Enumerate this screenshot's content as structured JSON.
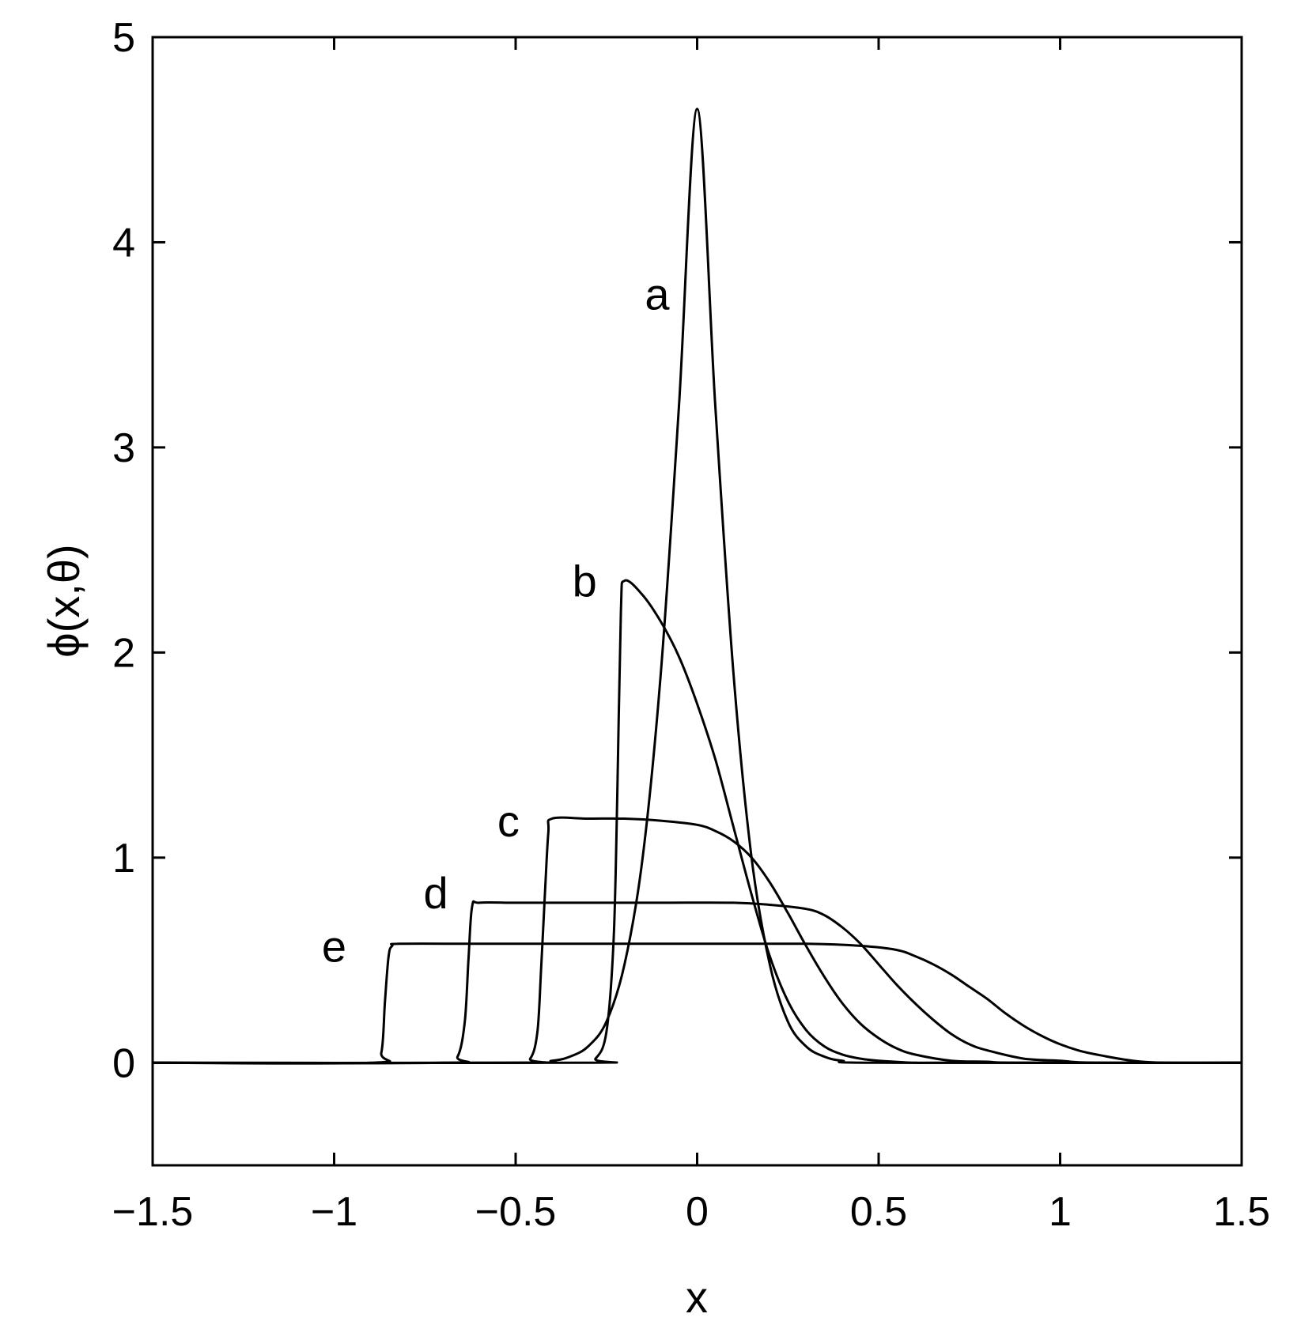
{
  "chart_data": {
    "type": "line",
    "title": "",
    "xlabel": "x",
    "ylabel": "ϕ(x,θ)",
    "xlim": [
      -1.5,
      1.5
    ],
    "ylim": [
      -0.5,
      5
    ],
    "grid": false,
    "line_color": "#000000",
    "x_ticks": [
      -1.5,
      -1,
      -0.5,
      0,
      0.5,
      1,
      1.5
    ],
    "x_tick_labels": [
      "−1.5",
      "−1",
      "−0.5",
      "0",
      "0.5",
      "1",
      "1.5"
    ],
    "y_ticks": [
      0,
      1,
      2,
      3,
      4,
      5
    ],
    "y_tick_labels": [
      "0",
      "1",
      "2",
      "3",
      "4",
      "5"
    ],
    "series": [
      {
        "label": "a",
        "label_at": [
          -0.11,
          3.75
        ],
        "x": [
          -1.5,
          -0.5,
          -0.4,
          -0.35,
          -0.3,
          -0.25,
          -0.2,
          -0.15,
          -0.1,
          -0.05,
          0,
          0.05,
          0.1,
          0.15,
          0.2,
          0.25,
          0.3,
          0.35,
          0.4,
          0.5,
          1.5
        ],
        "y": [
          0,
          0,
          0.01,
          0.03,
          0.08,
          0.2,
          0.48,
          1.0,
          1.9,
          3.2,
          4.65,
          3.2,
          1.9,
          1.0,
          0.48,
          0.2,
          0.08,
          0.03,
          0.01,
          0,
          0
        ]
      },
      {
        "label": "b",
        "label_at": [
          -0.31,
          2.35
        ],
        "x": [
          -1.5,
          -0.32,
          -0.28,
          -0.25,
          -0.23,
          -0.22,
          -0.21,
          -0.2,
          -0.15,
          -0.1,
          -0.05,
          0,
          0.05,
          0.1,
          0.15,
          0.2,
          0.25,
          0.3,
          0.35,
          0.4,
          0.45,
          0.5,
          0.6,
          0.7,
          1.5
        ],
        "y": [
          0,
          0,
          0.02,
          0.15,
          0.6,
          1.3,
          2.2,
          2.35,
          2.28,
          2.15,
          1.98,
          1.75,
          1.48,
          1.15,
          0.82,
          0.52,
          0.3,
          0.16,
          0.08,
          0.04,
          0.02,
          0.01,
          0,
          0,
          0
        ]
      },
      {
        "label": "c",
        "label_at": [
          -0.52,
          1.18
        ],
        "x": [
          -1.5,
          -0.5,
          -0.46,
          -0.44,
          -0.43,
          -0.42,
          -0.41,
          -0.4,
          -0.3,
          -0.2,
          -0.1,
          0,
          0.05,
          0.1,
          0.15,
          0.2,
          0.25,
          0.3,
          0.35,
          0.4,
          0.45,
          0.5,
          0.55,
          0.6,
          0.7,
          0.8,
          0.9,
          1.5
        ],
        "y": [
          0,
          0,
          0.02,
          0.15,
          0.45,
          0.8,
          1.12,
          1.19,
          1.19,
          1.19,
          1.18,
          1.16,
          1.13,
          1.08,
          1.0,
          0.88,
          0.73,
          0.57,
          0.42,
          0.29,
          0.19,
          0.12,
          0.07,
          0.04,
          0.01,
          0.005,
          0,
          0
        ]
      },
      {
        "label": "d",
        "label_at": [
          -0.72,
          0.83
        ],
        "x": [
          -1.5,
          -0.7,
          -0.66,
          -0.64,
          -0.63,
          -0.62,
          -0.6,
          -0.5,
          -0.3,
          -0.1,
          0.1,
          0.2,
          0.3,
          0.35,
          0.4,
          0.45,
          0.5,
          0.55,
          0.6,
          0.65,
          0.7,
          0.75,
          0.8,
          0.9,
          1.0,
          1.1,
          1.5
        ],
        "y": [
          0,
          0,
          0.03,
          0.2,
          0.5,
          0.76,
          0.78,
          0.78,
          0.78,
          0.78,
          0.78,
          0.77,
          0.75,
          0.72,
          0.66,
          0.58,
          0.48,
          0.38,
          0.29,
          0.21,
          0.14,
          0.09,
          0.06,
          0.02,
          0.01,
          0,
          0
        ]
      },
      {
        "label": "e",
        "label_at": [
          -1.0,
          0.57
        ],
        "x": [
          -1.5,
          -0.9,
          -0.87,
          -0.86,
          -0.85,
          -0.84,
          -0.82,
          -0.6,
          -0.3,
          0,
          0.3,
          0.45,
          0.55,
          0.6,
          0.65,
          0.7,
          0.75,
          0.8,
          0.85,
          0.9,
          0.95,
          1.0,
          1.05,
          1.1,
          1.2,
          1.3,
          1.5
        ],
        "y": [
          0,
          0,
          0.05,
          0.3,
          0.52,
          0.57,
          0.58,
          0.58,
          0.58,
          0.58,
          0.58,
          0.57,
          0.55,
          0.52,
          0.48,
          0.43,
          0.37,
          0.31,
          0.24,
          0.18,
          0.13,
          0.09,
          0.06,
          0.04,
          0.01,
          0,
          0
        ]
      }
    ]
  }
}
